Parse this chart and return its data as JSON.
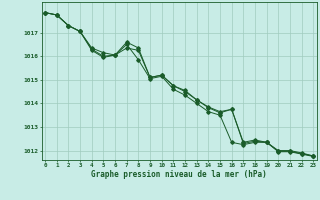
{
  "title": "Graphe pression niveau de la mer (hPa)",
  "xlabel_ticks": [
    0,
    1,
    2,
    3,
    4,
    5,
    6,
    7,
    8,
    9,
    10,
    11,
    12,
    13,
    14,
    15,
    16,
    17,
    18,
    19,
    20,
    21,
    22,
    23
  ],
  "ylim": [
    1011.6,
    1018.3
  ],
  "xlim": [
    -0.3,
    23.3
  ],
  "yticks": [
    1012,
    1013,
    1014,
    1015,
    1016,
    1017
  ],
  "background_color": "#c8ece6",
  "grid_color": "#a0ccbf",
  "line_color": "#1a5c2a",
  "line1": [
    1017.85,
    1017.75,
    1017.3,
    1017.05,
    1016.25,
    1015.95,
    1016.05,
    1016.5,
    1015.85,
    1015.05,
    1015.15,
    1014.6,
    1014.35,
    1014.0,
    1013.65,
    1013.5,
    1012.35,
    1012.25,
    1012.35,
    1012.35,
    1011.95,
    1011.95,
    1011.85,
    1011.75
  ],
  "line2": [
    1017.85,
    1017.75,
    1017.3,
    1017.05,
    1016.35,
    1016.15,
    1016.05,
    1016.35,
    1016.25,
    1015.1,
    1015.2,
    1014.75,
    1014.55,
    1014.15,
    1013.85,
    1013.65,
    1013.75,
    1012.3,
    1012.4,
    1012.35,
    1011.97,
    1011.97,
    1011.87,
    1011.77
  ],
  "line3": [
    1017.85,
    1017.75,
    1017.3,
    1017.05,
    1016.3,
    1016.0,
    1016.05,
    1016.6,
    1016.35,
    1015.1,
    1015.2,
    1014.75,
    1014.5,
    1014.15,
    1013.82,
    1013.6,
    1013.75,
    1012.35,
    1012.45,
    1012.35,
    1012.0,
    1012.0,
    1011.9,
    1011.77
  ]
}
